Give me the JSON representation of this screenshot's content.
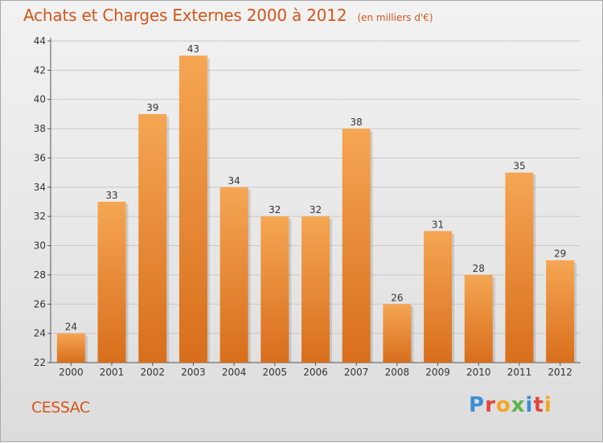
{
  "header": {
    "title": "Achats et Charges Externes 2000 à 2012",
    "subtitle": "(en milliers d'€)"
  },
  "footer": {
    "place": "CESSAC",
    "brand": "Proxiti",
    "brand_letter_colors": [
      "#3b8fd4",
      "#e1463a",
      "#f5a623",
      "#5fb14b",
      "#3b8fd4",
      "#e1463a",
      "#f5a623"
    ]
  },
  "colors": {
    "bar_light": "#f5a653",
    "bar_dark": "#d86e1c",
    "accent": "#d4561a"
  },
  "chart_data": {
    "type": "bar",
    "title": "Achats et Charges Externes 2000 à 2012",
    "subtitle": "(en milliers d'€)",
    "xlabel": "",
    "ylabel": "",
    "categories": [
      "2000",
      "2001",
      "2002",
      "2003",
      "2004",
      "2005",
      "2006",
      "2007",
      "2008",
      "2009",
      "2010",
      "2011",
      "2012"
    ],
    "values": [
      24,
      33,
      39,
      43,
      34,
      32,
      32,
      38,
      26,
      31,
      28,
      35,
      29
    ],
    "ylim": [
      22,
      44
    ],
    "yticks": [
      22,
      24,
      26,
      28,
      30,
      32,
      34,
      36,
      38,
      40,
      42,
      44
    ],
    "grid": true,
    "data_labels": true
  }
}
